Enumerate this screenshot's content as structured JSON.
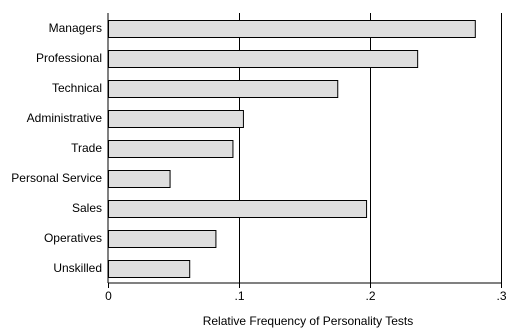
{
  "chart_data": {
    "type": "bar",
    "orientation": "horizontal",
    "categories": [
      "Managers",
      "Professional",
      "Technical",
      "Administrative",
      "Trade",
      "Personal Service",
      "Sales",
      "Operatives",
      "Unskilled"
    ],
    "values": [
      0.28,
      0.236,
      0.175,
      0.103,
      0.095,
      0.047,
      0.197,
      0.082,
      0.062
    ],
    "xlabel": "Relative Frequency of Personality Tests",
    "ylabel": "",
    "xlim": [
      0,
      0.3
    ],
    "xticks": [
      0,
      0.1,
      0.2,
      0.3
    ],
    "xtick_labels": [
      "0",
      ".1",
      ".2",
      ".3"
    ],
    "grid": "vertical lines at major ticks",
    "legend": "none",
    "colors": {
      "bar_fill": "#dedede",
      "bar_stroke": "#000000",
      "grid": "#000000"
    }
  }
}
